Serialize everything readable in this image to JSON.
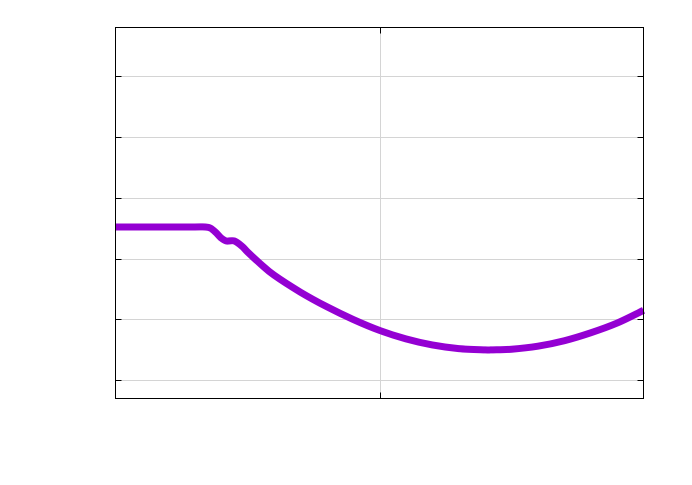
{
  "chart_data": {
    "type": "line",
    "title": "",
    "xlabel": "",
    "ylabel": "",
    "xlim": [
      0,
      2
    ],
    "ylim": [
      -0.3,
      5.8
    ],
    "x_gridlines": [
      1
    ],
    "y_gridlines": [
      0,
      1,
      2,
      3,
      4,
      5
    ],
    "grid": true,
    "legend": "none",
    "series": [
      {
        "color": "#9400d3",
        "x": [
          0,
          0.1,
          0.2,
          0.3,
          0.34,
          0.36,
          0.38,
          0.4,
          0.42,
          0.45,
          0.48,
          0.5,
          0.55,
          0.6,
          0.7,
          0.8,
          0.9,
          1.0,
          1.1,
          1.2,
          1.3,
          1.4,
          1.43,
          1.5,
          1.6,
          1.7,
          1.8,
          1.9,
          2.0
        ],
        "values": [
          2.52,
          2.52,
          2.52,
          2.52,
          2.52,
          2.5,
          2.43,
          2.34,
          2.29,
          2.29,
          2.2,
          2.11,
          1.91,
          1.73,
          1.45,
          1.21,
          1.0,
          0.82,
          0.68,
          0.58,
          0.52,
          0.5,
          0.5,
          0.51,
          0.56,
          0.65,
          0.78,
          0.94,
          1.15
        ]
      }
    ]
  }
}
